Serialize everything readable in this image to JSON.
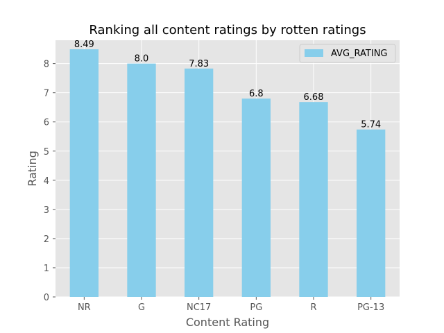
{
  "chart_data": {
    "type": "bar",
    "title": "Ranking all content ratings by rotten ratings",
    "xlabel": "Content Rating",
    "ylabel": "Rating",
    "categories": [
      "NR",
      "G",
      "NC17",
      "PG",
      "R",
      "PG-13"
    ],
    "series": [
      {
        "name": "AVG_RATING",
        "values": [
          8.49,
          8.0,
          7.83,
          6.8,
          6.68,
          5.74
        ],
        "labels": [
          "8.49",
          "8.0",
          "7.83",
          "6.8",
          "6.68",
          "5.74"
        ],
        "color": "#87CEEB"
      }
    ],
    "ylim": [
      0,
      8.8
    ],
    "yticks": [
      0,
      1,
      2,
      3,
      4,
      5,
      6,
      7,
      8
    ],
    "ytick_labels": [
      "0",
      "1",
      "2",
      "3",
      "4",
      "5",
      "6",
      "7",
      "8"
    ],
    "grid": true,
    "legend": "top-right",
    "background_color": "#E5E5E5"
  }
}
